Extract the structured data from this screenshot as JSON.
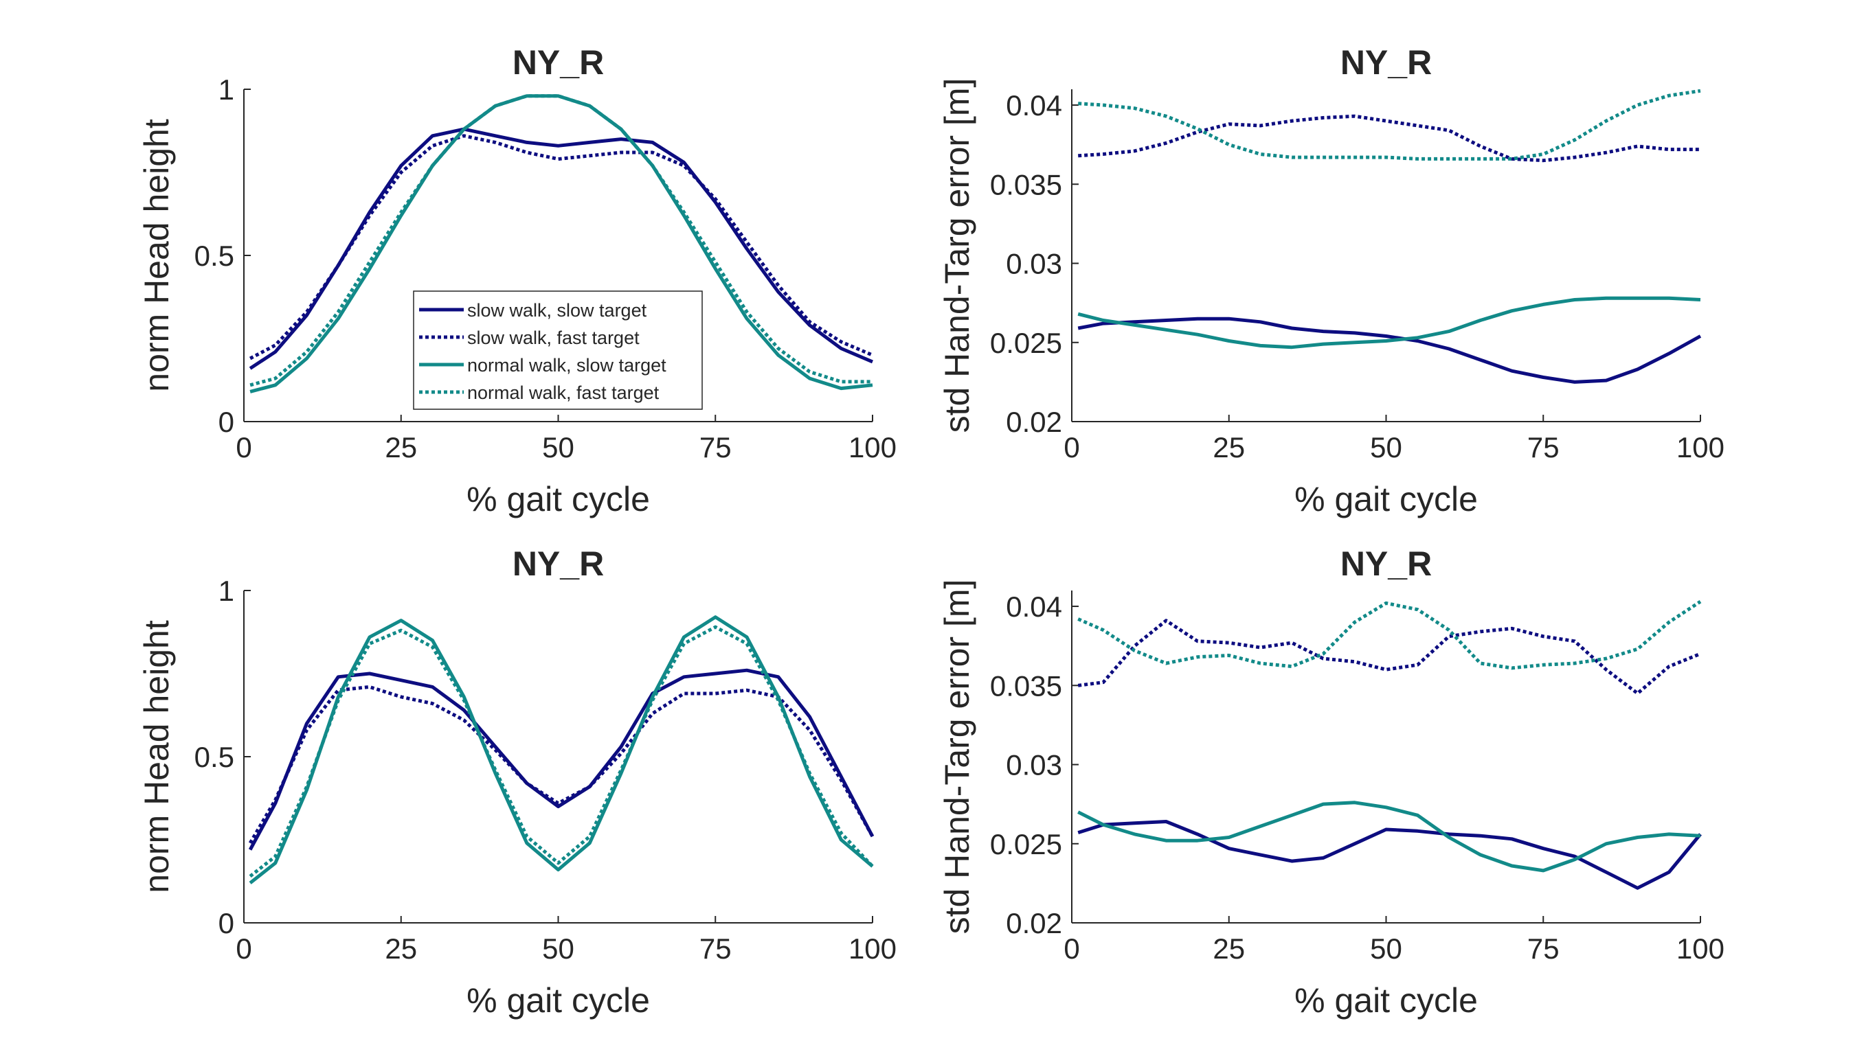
{
  "colors": {
    "slow_walk": "#0d0d80",
    "normal_walk": "#128a89",
    "axis": "#262626"
  },
  "chart_data": [
    {
      "type": "line",
      "title": "NY_R",
      "xlabel": "% gait cycle",
      "ylabel": "norm Head height",
      "xlim": [
        0,
        100
      ],
      "ylim": [
        0,
        1
      ],
      "xticks": [
        "0",
        "25",
        "50",
        "75",
        "100"
      ],
      "yticks": [
        "0",
        "0.5",
        "1"
      ],
      "legend": {
        "position": "lower-center",
        "entries": [
          "slow walk, slow target",
          "slow walk, fast target",
          "normal walk, slow target",
          "normal walk, fast target"
        ]
      },
      "series": [
        {
          "name": "slow walk, slow target",
          "color": "#0d0d80",
          "style": "solid",
          "x": [
            1,
            5,
            10,
            15,
            20,
            25,
            30,
            35,
            40,
            45,
            50,
            55,
            60,
            65,
            70,
            75,
            80,
            85,
            90,
            95,
            100
          ],
          "y": [
            0.16,
            0.21,
            0.32,
            0.47,
            0.63,
            0.77,
            0.86,
            0.88,
            0.86,
            0.84,
            0.83,
            0.84,
            0.85,
            0.84,
            0.78,
            0.66,
            0.52,
            0.39,
            0.29,
            0.22,
            0.18
          ]
        },
        {
          "name": "slow walk, fast target",
          "color": "#0d0d80",
          "style": "dotted",
          "x": [
            1,
            5,
            10,
            15,
            20,
            25,
            30,
            35,
            40,
            45,
            50,
            55,
            60,
            65,
            70,
            75,
            80,
            85,
            90,
            95,
            100
          ],
          "y": [
            0.19,
            0.23,
            0.33,
            0.47,
            0.62,
            0.75,
            0.83,
            0.86,
            0.84,
            0.81,
            0.79,
            0.8,
            0.81,
            0.81,
            0.77,
            0.67,
            0.54,
            0.41,
            0.3,
            0.24,
            0.2
          ]
        },
        {
          "name": "normal walk, slow target",
          "color": "#128a89",
          "style": "solid",
          "x": [
            1,
            5,
            10,
            15,
            20,
            25,
            30,
            35,
            40,
            45,
            50,
            55,
            60,
            65,
            70,
            75,
            80,
            85,
            90,
            95,
            100
          ],
          "y": [
            0.09,
            0.11,
            0.19,
            0.31,
            0.46,
            0.62,
            0.77,
            0.88,
            0.95,
            0.98,
            0.98,
            0.95,
            0.88,
            0.77,
            0.62,
            0.46,
            0.31,
            0.2,
            0.13,
            0.1,
            0.11
          ]
        },
        {
          "name": "normal walk, fast target",
          "color": "#128a89",
          "style": "dotted",
          "x": [
            1,
            5,
            10,
            15,
            20,
            25,
            30,
            35,
            40,
            45,
            50,
            55,
            60,
            65,
            70,
            75,
            80,
            85,
            90,
            95,
            100
          ],
          "y": [
            0.11,
            0.13,
            0.21,
            0.33,
            0.48,
            0.63,
            0.77,
            0.88,
            0.95,
            0.98,
            0.98,
            0.95,
            0.88,
            0.77,
            0.63,
            0.48,
            0.33,
            0.22,
            0.15,
            0.12,
            0.12
          ]
        }
      ]
    },
    {
      "type": "line",
      "title": "NY_R",
      "xlabel": "% gait cycle",
      "ylabel": "std Hand-Targ error [m]",
      "xlim": [
        0,
        100
      ],
      "ylim": [
        0.02,
        0.041
      ],
      "xticks": [
        "0",
        "25",
        "50",
        "75",
        "100"
      ],
      "yticks": [
        "0.02",
        "0.025",
        "0.03",
        "0.035",
        "0.04"
      ],
      "series": [
        {
          "name": "slow walk, slow target",
          "color": "#0d0d80",
          "style": "solid",
          "x": [
            1,
            5,
            10,
            15,
            20,
            25,
            30,
            35,
            40,
            45,
            50,
            55,
            60,
            65,
            70,
            75,
            80,
            85,
            90,
            95,
            100
          ],
          "y": [
            0.0259,
            0.0262,
            0.0263,
            0.0264,
            0.0265,
            0.0265,
            0.0263,
            0.0259,
            0.0257,
            0.0256,
            0.0254,
            0.0251,
            0.0246,
            0.0239,
            0.0232,
            0.0228,
            0.0225,
            0.0226,
            0.0233,
            0.0243,
            0.0254
          ]
        },
        {
          "name": "slow walk, fast target",
          "color": "#0d0d80",
          "style": "dotted",
          "x": [
            1,
            5,
            10,
            15,
            20,
            25,
            30,
            35,
            40,
            45,
            50,
            55,
            60,
            65,
            70,
            75,
            80,
            85,
            90,
            95,
            100
          ],
          "y": [
            0.0368,
            0.0369,
            0.0371,
            0.0376,
            0.0383,
            0.0388,
            0.0387,
            0.039,
            0.0392,
            0.0393,
            0.039,
            0.0387,
            0.0384,
            0.0374,
            0.0366,
            0.0365,
            0.0367,
            0.037,
            0.0374,
            0.0372,
            0.0372
          ]
        },
        {
          "name": "normal walk, slow target",
          "color": "#128a89",
          "style": "solid",
          "x": [
            1,
            5,
            10,
            15,
            20,
            25,
            30,
            35,
            40,
            45,
            50,
            55,
            60,
            65,
            70,
            75,
            80,
            85,
            90,
            95,
            100
          ],
          "y": [
            0.0268,
            0.0264,
            0.0261,
            0.0258,
            0.0255,
            0.0251,
            0.0248,
            0.0247,
            0.0249,
            0.025,
            0.0251,
            0.0253,
            0.0257,
            0.0264,
            0.027,
            0.0274,
            0.0277,
            0.0278,
            0.0278,
            0.0278,
            0.0277
          ]
        },
        {
          "name": "normal walk, fast target",
          "color": "#128a89",
          "style": "dotted",
          "x": [
            1,
            5,
            10,
            15,
            20,
            25,
            30,
            35,
            40,
            45,
            50,
            55,
            60,
            65,
            70,
            75,
            80,
            85,
            90,
            95,
            100
          ],
          "y": [
            0.0401,
            0.04,
            0.0398,
            0.0393,
            0.0385,
            0.0375,
            0.0369,
            0.0367,
            0.0367,
            0.0367,
            0.0367,
            0.0366,
            0.0366,
            0.0366,
            0.0366,
            0.0369,
            0.0378,
            0.039,
            0.04,
            0.0406,
            0.0409
          ]
        }
      ]
    },
    {
      "type": "line",
      "title": "NY_R",
      "xlabel": "% gait cycle",
      "ylabel": "norm Head height",
      "xlim": [
        0,
        100
      ],
      "ylim": [
        0,
        1
      ],
      "xticks": [
        "0",
        "25",
        "50",
        "75",
        "100"
      ],
      "yticks": [
        "0",
        "0.5",
        "1"
      ],
      "series": [
        {
          "name": "slow walk, slow target",
          "color": "#0d0d80",
          "style": "solid",
          "x": [
            1,
            5,
            10,
            15,
            20,
            25,
            30,
            35,
            40,
            45,
            50,
            55,
            60,
            65,
            70,
            75,
            80,
            85,
            90,
            95,
            100
          ],
          "y": [
            0.22,
            0.36,
            0.6,
            0.74,
            0.75,
            0.73,
            0.71,
            0.64,
            0.53,
            0.42,
            0.35,
            0.41,
            0.53,
            0.69,
            0.74,
            0.75,
            0.76,
            0.74,
            0.62,
            0.44,
            0.26
          ]
        },
        {
          "name": "slow walk, fast target",
          "color": "#0d0d80",
          "style": "dotted",
          "x": [
            1,
            5,
            10,
            15,
            20,
            25,
            30,
            35,
            40,
            45,
            50,
            55,
            60,
            65,
            70,
            75,
            80,
            85,
            90,
            95,
            100
          ],
          "y": [
            0.24,
            0.37,
            0.58,
            0.7,
            0.71,
            0.68,
            0.66,
            0.61,
            0.52,
            0.42,
            0.36,
            0.41,
            0.51,
            0.63,
            0.69,
            0.69,
            0.7,
            0.68,
            0.58,
            0.43,
            0.26
          ]
        },
        {
          "name": "normal walk, slow target",
          "color": "#128a89",
          "style": "solid",
          "x": [
            1,
            5,
            10,
            15,
            20,
            25,
            30,
            35,
            40,
            45,
            50,
            55,
            60,
            65,
            70,
            75,
            80,
            85,
            90,
            95,
            100
          ],
          "y": [
            0.12,
            0.18,
            0.4,
            0.68,
            0.86,
            0.91,
            0.85,
            0.68,
            0.45,
            0.24,
            0.16,
            0.24,
            0.45,
            0.68,
            0.86,
            0.92,
            0.86,
            0.68,
            0.44,
            0.25,
            0.17
          ]
        },
        {
          "name": "normal walk, fast target",
          "color": "#128a89",
          "style": "dotted",
          "x": [
            1,
            5,
            10,
            15,
            20,
            25,
            30,
            35,
            40,
            45,
            50,
            55,
            60,
            65,
            70,
            75,
            80,
            85,
            90,
            95,
            100
          ],
          "y": [
            0.14,
            0.2,
            0.41,
            0.67,
            0.84,
            0.88,
            0.83,
            0.67,
            0.46,
            0.26,
            0.18,
            0.26,
            0.46,
            0.67,
            0.84,
            0.89,
            0.84,
            0.67,
            0.45,
            0.27,
            0.17
          ]
        }
      ]
    },
    {
      "type": "line",
      "title": "NY_R",
      "xlabel": "% gait cycle",
      "ylabel": "std Hand-Targ error [m]",
      "xlim": [
        0,
        100
      ],
      "ylim": [
        0.02,
        0.041
      ],
      "xticks": [
        "0",
        "25",
        "50",
        "75",
        "100"
      ],
      "yticks": [
        "0.02",
        "0.025",
        "0.03",
        "0.035",
        "0.04"
      ],
      "series": [
        {
          "name": "slow walk, slow target",
          "color": "#0d0d80",
          "style": "solid",
          "x": [
            1,
            5,
            10,
            15,
            20,
            25,
            30,
            35,
            40,
            45,
            50,
            55,
            60,
            65,
            70,
            75,
            80,
            85,
            90,
            95,
            100
          ],
          "y": [
            0.0257,
            0.0262,
            0.0263,
            0.0264,
            0.0256,
            0.0247,
            0.0243,
            0.0239,
            0.0241,
            0.025,
            0.0259,
            0.0258,
            0.0256,
            0.0255,
            0.0253,
            0.0247,
            0.0242,
            0.0232,
            0.0222,
            0.0232,
            0.0256
          ]
        },
        {
          "name": "slow walk, fast target",
          "color": "#0d0d80",
          "style": "dotted",
          "x": [
            1,
            5,
            10,
            15,
            20,
            25,
            30,
            35,
            40,
            45,
            50,
            55,
            60,
            65,
            70,
            75,
            80,
            85,
            90,
            95,
            100
          ],
          "y": [
            0.035,
            0.0352,
            0.0375,
            0.0391,
            0.0378,
            0.0377,
            0.0374,
            0.0377,
            0.0367,
            0.0365,
            0.036,
            0.0363,
            0.0381,
            0.0384,
            0.0386,
            0.0381,
            0.0378,
            0.036,
            0.0345,
            0.0362,
            0.037
          ]
        },
        {
          "name": "normal walk, slow target",
          "color": "#128a89",
          "style": "solid",
          "x": [
            1,
            5,
            10,
            15,
            20,
            25,
            30,
            35,
            40,
            45,
            50,
            55,
            60,
            65,
            70,
            75,
            80,
            85,
            90,
            95,
            100
          ],
          "y": [
            0.027,
            0.0262,
            0.0256,
            0.0252,
            0.0252,
            0.0254,
            0.0261,
            0.0268,
            0.0275,
            0.0276,
            0.0273,
            0.0268,
            0.0254,
            0.0243,
            0.0236,
            0.0233,
            0.024,
            0.025,
            0.0254,
            0.0256,
            0.0255
          ]
        },
        {
          "name": "normal walk, fast target",
          "color": "#128a89",
          "style": "dotted",
          "x": [
            1,
            5,
            10,
            15,
            20,
            25,
            30,
            35,
            40,
            45,
            50,
            55,
            60,
            65,
            70,
            75,
            80,
            85,
            90,
            95,
            100
          ],
          "y": [
            0.0392,
            0.0385,
            0.0372,
            0.0364,
            0.0368,
            0.0369,
            0.0364,
            0.0362,
            0.037,
            0.039,
            0.0402,
            0.0398,
            0.0385,
            0.0364,
            0.0361,
            0.0363,
            0.0364,
            0.0367,
            0.0373,
            0.039,
            0.0403
          ]
        }
      ]
    }
  ]
}
